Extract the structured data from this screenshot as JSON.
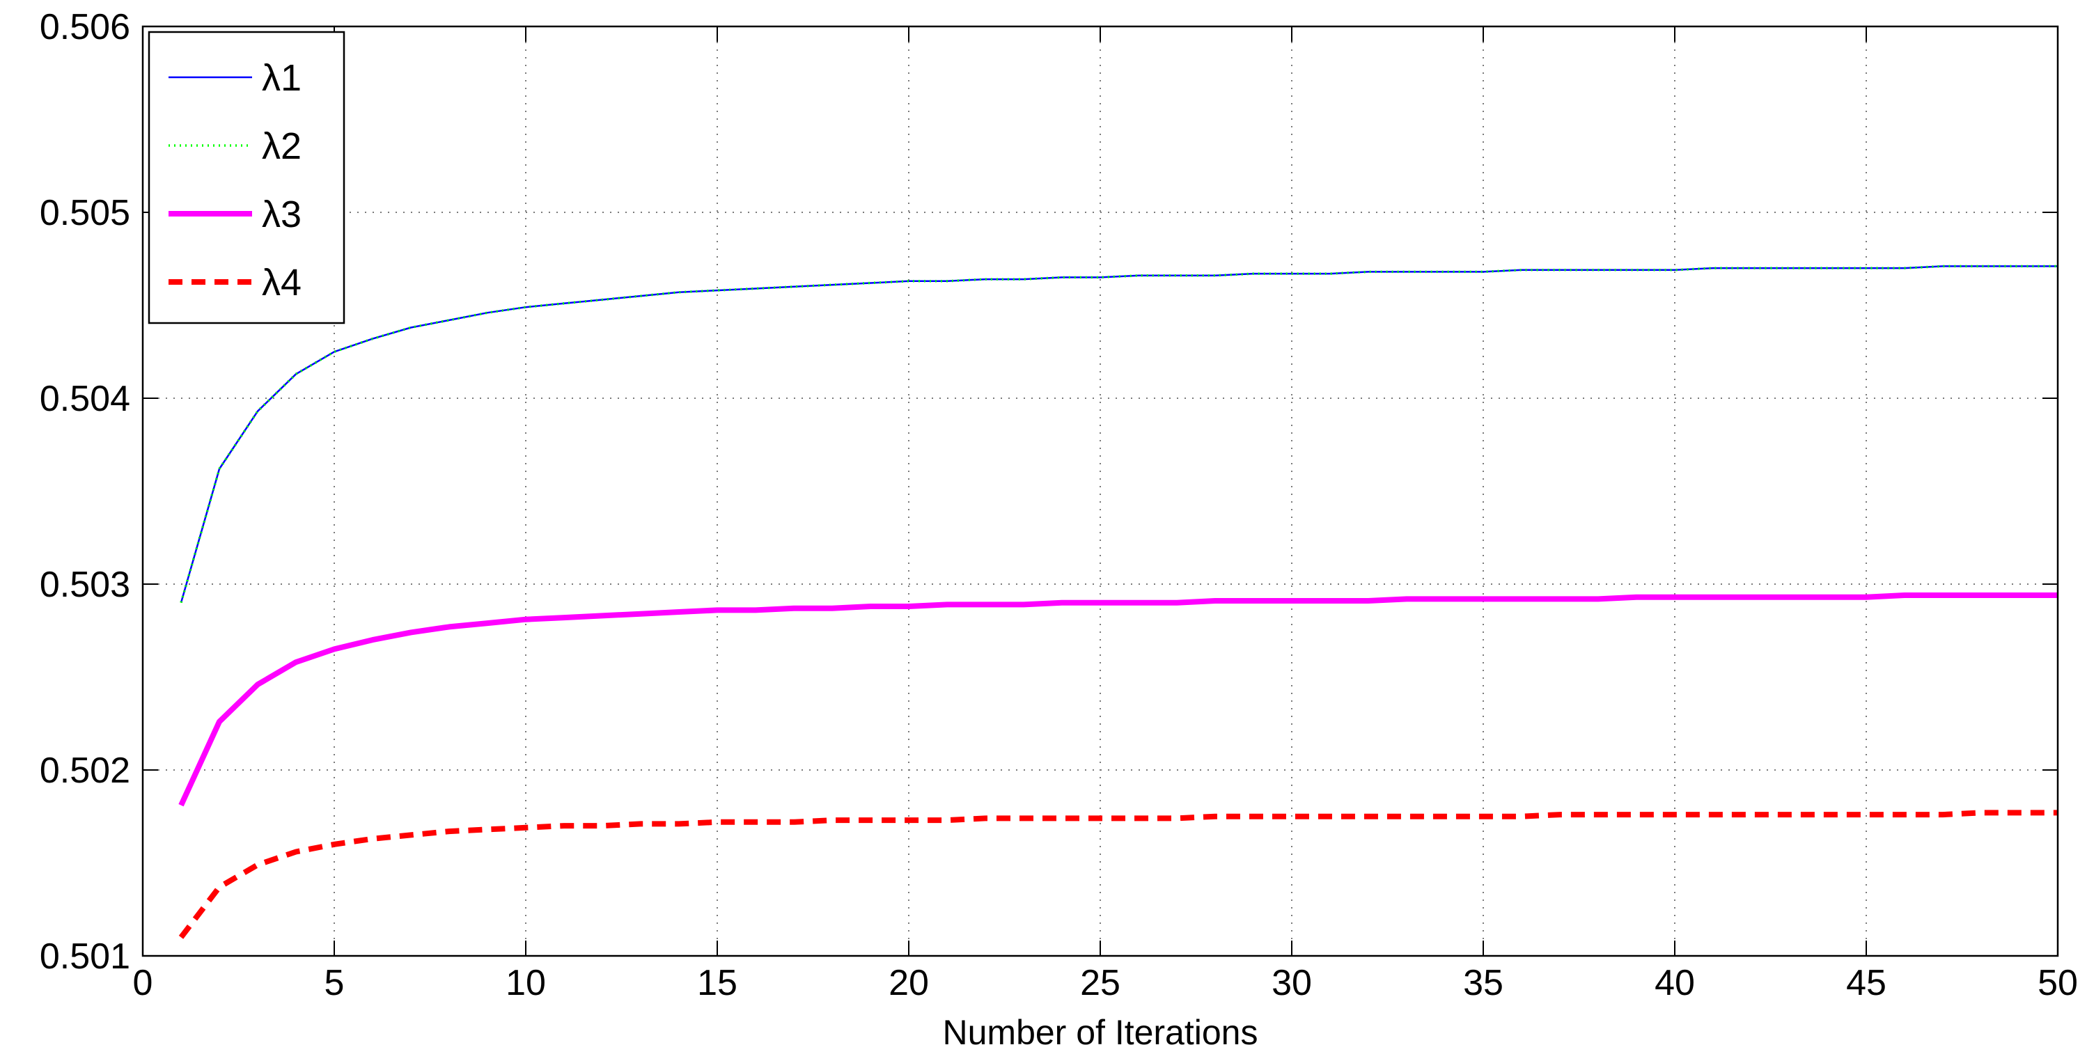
{
  "chart_data": {
    "type": "line",
    "title": "",
    "xlabel": "Number of Iterations",
    "ylabel": "",
    "xlim": [
      0,
      50
    ],
    "ylim": [
      0.501,
      0.506
    ],
    "xticks": [
      0,
      5,
      10,
      15,
      20,
      25,
      30,
      35,
      40,
      45,
      50
    ],
    "xtick_labels": [
      "0",
      "5",
      "10",
      "15",
      "20",
      "25",
      "30",
      "35",
      "40",
      "45",
      "50"
    ],
    "yticks": [
      0.501,
      0.502,
      0.503,
      0.504,
      0.505,
      0.506
    ],
    "ytick_labels": [
      "0.501",
      "0.502",
      "0.503",
      "0.504",
      "0.505",
      "0.506"
    ],
    "grid": true,
    "legend_position": "top-left",
    "x": [
      1,
      2,
      3,
      4,
      5,
      6,
      7,
      8,
      9,
      10,
      11,
      12,
      13,
      14,
      15,
      16,
      17,
      18,
      19,
      20,
      21,
      22,
      23,
      24,
      25,
      26,
      27,
      28,
      29,
      30,
      31,
      32,
      33,
      34,
      35,
      36,
      37,
      38,
      39,
      40,
      41,
      42,
      43,
      44,
      45,
      46,
      47,
      48,
      49,
      50
    ],
    "series": [
      {
        "name": "λ1",
        "color": "#0000ff",
        "style": "solid-thin",
        "values": [
          0.5029,
          0.50362,
          0.50393,
          0.50413,
          0.50425,
          0.50432,
          0.50438,
          0.50442,
          0.50446,
          0.50449,
          0.50451,
          0.50453,
          0.50455,
          0.50457,
          0.50458,
          0.50459,
          0.5046,
          0.50461,
          0.50462,
          0.50463,
          0.50463,
          0.50464,
          0.50464,
          0.50465,
          0.50465,
          0.50466,
          0.50466,
          0.50466,
          0.50467,
          0.50467,
          0.50467,
          0.50468,
          0.50468,
          0.50468,
          0.50468,
          0.50469,
          0.50469,
          0.50469,
          0.50469,
          0.50469,
          0.5047,
          0.5047,
          0.5047,
          0.5047,
          0.5047,
          0.5047,
          0.50471,
          0.50471,
          0.50471,
          0.50471
        ]
      },
      {
        "name": "λ2",
        "color": "#00ff00",
        "style": "dotted",
        "values": [
          0.5029,
          0.50362,
          0.50393,
          0.50413,
          0.50425,
          0.50432,
          0.50438,
          0.50442,
          0.50446,
          0.50449,
          0.50451,
          0.50453,
          0.50455,
          0.50457,
          0.50458,
          0.50459,
          0.5046,
          0.50461,
          0.50462,
          0.50463,
          0.50463,
          0.50464,
          0.50464,
          0.50465,
          0.50465,
          0.50466,
          0.50466,
          0.50466,
          0.50467,
          0.50467,
          0.50467,
          0.50468,
          0.50468,
          0.50468,
          0.50468,
          0.50469,
          0.50469,
          0.50469,
          0.50469,
          0.50469,
          0.5047,
          0.5047,
          0.5047,
          0.5047,
          0.5047,
          0.5047,
          0.50471,
          0.50471,
          0.50471,
          0.50471
        ]
      },
      {
        "name": "λ3",
        "color": "#ff00ff",
        "style": "solid-thick",
        "values": [
          0.50181,
          0.50226,
          0.50246,
          0.50258,
          0.50265,
          0.5027,
          0.50274,
          0.50277,
          0.50279,
          0.50281,
          0.50282,
          0.50283,
          0.50284,
          0.50285,
          0.50286,
          0.50286,
          0.50287,
          0.50287,
          0.50288,
          0.50288,
          0.50289,
          0.50289,
          0.50289,
          0.5029,
          0.5029,
          0.5029,
          0.5029,
          0.50291,
          0.50291,
          0.50291,
          0.50291,
          0.50291,
          0.50292,
          0.50292,
          0.50292,
          0.50292,
          0.50292,
          0.50292,
          0.50293,
          0.50293,
          0.50293,
          0.50293,
          0.50293,
          0.50293,
          0.50293,
          0.50294,
          0.50294,
          0.50294,
          0.50294,
          0.50294
        ]
      },
      {
        "name": "λ4",
        "color": "#ff0000",
        "style": "dashed-thick",
        "values": [
          0.5011,
          0.50137,
          0.50149,
          0.50156,
          0.5016,
          0.50163,
          0.50165,
          0.50167,
          0.50168,
          0.50169,
          0.5017,
          0.5017,
          0.50171,
          0.50171,
          0.50172,
          0.50172,
          0.50172,
          0.50173,
          0.50173,
          0.50173,
          0.50173,
          0.50174,
          0.50174,
          0.50174,
          0.50174,
          0.50174,
          0.50174,
          0.50175,
          0.50175,
          0.50175,
          0.50175,
          0.50175,
          0.50175,
          0.50175,
          0.50175,
          0.50175,
          0.50176,
          0.50176,
          0.50176,
          0.50176,
          0.50176,
          0.50176,
          0.50176,
          0.50176,
          0.50176,
          0.50176,
          0.50176,
          0.50177,
          0.50177,
          0.50177
        ]
      }
    ]
  }
}
